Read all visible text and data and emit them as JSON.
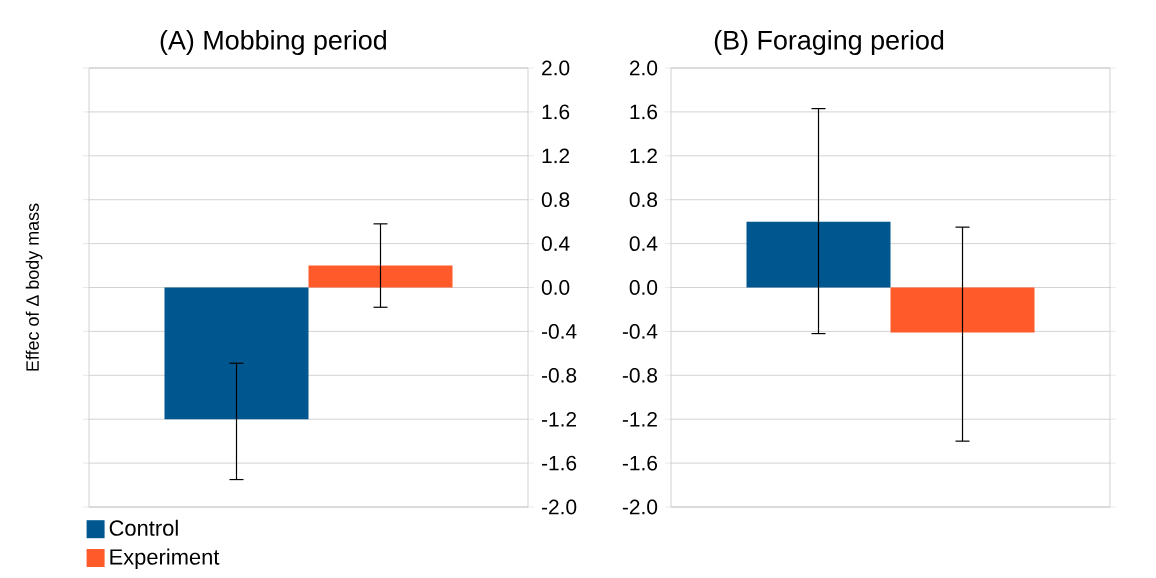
{
  "chart_data": [
    {
      "type": "bar",
      "title": "(A) Mobbing period",
      "ylabel": "Effec of Δ body mass",
      "categories": [
        null
      ],
      "series": [
        {
          "name": "Control",
          "color": "#00578f",
          "values": [
            -1.2
          ],
          "errors": [
            [
              -1.75,
              -0.69
            ]
          ]
        },
        {
          "name": "Experiment",
          "color": "#ff5a29",
          "values": [
            0.2
          ],
          "errors": [
            [
              -0.18,
              0.58
            ]
          ]
        }
      ],
      "ylim": [
        -2,
        2
      ],
      "yticks": [
        {
          "value": -2,
          "label": "-2.0"
        },
        {
          "value": -1.6,
          "label": "-1.6"
        },
        {
          "value": -1.2,
          "label": "-1.2"
        },
        {
          "value": -0.8,
          "label": "-0.8"
        },
        {
          "value": -0.4,
          "label": "-0.4"
        },
        {
          "value": 0,
          "label": "0.0"
        },
        {
          "value": 0.4,
          "label": "0.4"
        },
        {
          "value": 0.8,
          "label": "0.8"
        },
        {
          "value": 1.2,
          "label": "1.2"
        },
        {
          "value": 1.6,
          "label": "1.6"
        },
        {
          "value": 2,
          "label": "2.0"
        }
      ],
      "grid": "y",
      "legend": "bottom",
      "tick_labels": "y"
    },
    {
      "type": "bar",
      "title": "(B) Foraging period",
      "categories": [
        null
      ],
      "series": [
        {
          "color": "#00578f",
          "values": [
            0.6
          ],
          "errors": [
            [
              -0.42,
              1.63
            ]
          ]
        },
        {
          "color": "#ff5a29",
          "values": [
            -0.41
          ],
          "errors": [
            [
              -1.4,
              0.55
            ]
          ]
        }
      ],
      "ylim": [
        -2,
        2
      ],
      "yticks": [
        {
          "value": -2,
          "label": "-2.0"
        },
        {
          "value": -1.6,
          "label": "-1.6"
        },
        {
          "value": -1.2,
          "label": "-1.2"
        },
        {
          "value": -0.8,
          "label": "-0.8"
        },
        {
          "value": -0.4,
          "label": "-0.4"
        },
        {
          "value": 0,
          "label": "0.0"
        },
        {
          "value": 0.4,
          "label": "0.4"
        },
        {
          "value": 0.8,
          "label": "0.8"
        },
        {
          "value": 1.2,
          "label": "1.2"
        },
        {
          "value": 1.6,
          "label": "1.6"
        },
        {
          "value": 2,
          "label": "2.0"
        }
      ],
      "grid": "y",
      "tick_labels": "y"
    }
  ]
}
